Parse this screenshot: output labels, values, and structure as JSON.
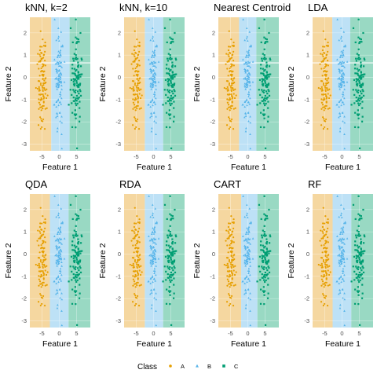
{
  "chart_data": {
    "type": "scatter",
    "x_ticks": [
      -5,
      0,
      5
    ],
    "y_ticks": [
      -3,
      -2,
      -1,
      0,
      1,
      2
    ],
    "xlim": [
      -8.5,
      9.0
    ],
    "ylim": [
      -3.3,
      2.7
    ],
    "xlabel": "Feature 1",
    "ylabel": "Feature 2",
    "grid": true,
    "legend": {
      "title": "Class",
      "position": "bottom",
      "items": [
        {
          "label": "A",
          "color": "#E69F00",
          "shape": "circle"
        },
        {
          "label": "B",
          "color": "#56B4E9",
          "shape": "triangle"
        },
        {
          "label": "C",
          "color": "#009E73",
          "shape": "square"
        }
      ]
    },
    "classes": [
      {
        "label": "A",
        "center_x": -5,
        "spread_x": 1.2,
        "n": 110
      },
      {
        "label": "B",
        "center_x": 0,
        "spread_x": 1.2,
        "n": 110
      },
      {
        "label": "C",
        "center_x": 5,
        "spread_x": 1.2,
        "n": 110
      }
    ],
    "panels": [
      {
        "title": "kNN, k=2",
        "boundaries": [
          -2.3,
          3.0
        ],
        "hline": 0.65
      },
      {
        "title": "kNN, k=10",
        "boundaries": [
          -2.5,
          2.8
        ],
        "hline": null
      },
      {
        "title": "Nearest Centroid",
        "boundaries": [
          -2.5,
          2.5
        ],
        "hline": 0.65
      },
      {
        "title": "LDA",
        "boundaries": [
          -2.8,
          2.4
        ],
        "hline": 0.65
      },
      {
        "title": "QDA",
        "boundaries": [
          -2.7,
          2.7
        ],
        "hline": null
      },
      {
        "title": "RDA",
        "boundaries": [
          -2.5,
          2.8
        ],
        "hline": null
      },
      {
        "title": "CART",
        "boundaries": [
          -1.9,
          2.8
        ],
        "hline": null
      },
      {
        "title": "RF",
        "boundaries": [
          -2.7,
          2.7
        ],
        "hline": null
      }
    ]
  }
}
